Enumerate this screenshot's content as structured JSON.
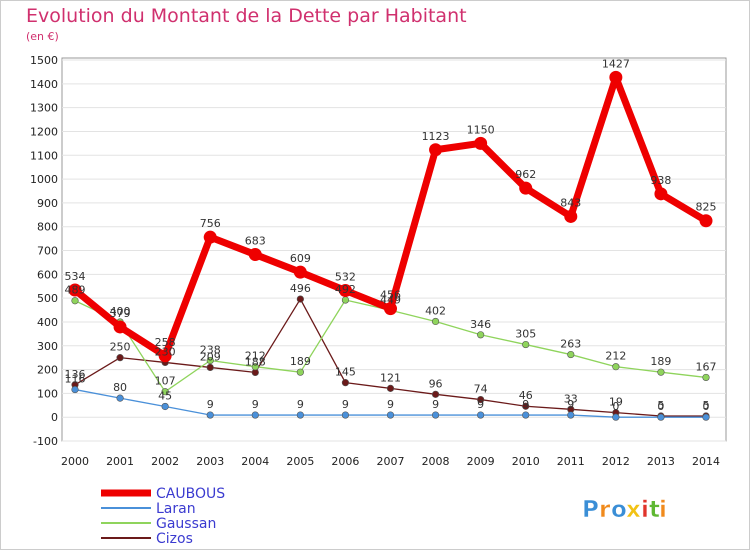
{
  "chart_data": {
    "type": "line",
    "title": "Evolution du Montant de la Dette par Habitant",
    "subtitle": "(en €)",
    "x": [
      "2000",
      "2001",
      "2002",
      "2003",
      "2004",
      "2005",
      "2006",
      "2007",
      "2008",
      "2009",
      "2010",
      "2011",
      "2012",
      "2013",
      "2014"
    ],
    "ylim": [
      -100,
      1500
    ],
    "yticks": [
      "-100",
      "0",
      "100",
      "200",
      "300",
      "400",
      "500",
      "600",
      "700",
      "800",
      "900",
      "1000",
      "1100",
      "1200",
      "1300",
      "1400",
      "1500"
    ],
    "grid": true,
    "legend_position": "bottom-left",
    "series": [
      {
        "name": "CAUBOUS",
        "color": "#ee0000",
        "values": [
          534,
          379,
          258,
          756,
          683,
          609,
          532,
          456,
          1123,
          1150,
          962,
          843,
          1427,
          938,
          825
        ],
        "labels": [
          "534",
          "379",
          "258",
          "756",
          "683",
          "609",
          "532",
          "456",
          "1123",
          "1150",
          "962",
          "843",
          "1427",
          "938",
          "825"
        ]
      },
      {
        "name": "Laran",
        "color": "#4a90d9",
        "values": [
          116,
          80,
          45,
          9,
          9,
          9,
          9,
          9,
          9,
          9,
          9,
          9,
          0,
          0,
          0
        ],
        "labels": [
          "116",
          "80",
          "45",
          "9",
          "9",
          "9",
          "9",
          "9",
          "9",
          "9",
          "9",
          "9",
          "0",
          "0",
          "0"
        ]
      },
      {
        "name": "Gaussan",
        "color": "#8fd45c",
        "values": [
          489,
          400,
          107,
          238,
          212,
          189,
          492,
          449,
          402,
          346,
          305,
          263,
          212,
          189,
          167
        ],
        "labels": [
          "489",
          "400",
          "107",
          "238",
          "212",
          "189",
          "492",
          "449",
          "402",
          "346",
          "305",
          "263",
          "212",
          "189",
          "167"
        ]
      },
      {
        "name": "Cizos",
        "color": "#6b1a1a",
        "values": [
          136,
          250,
          230,
          209,
          188,
          496,
          145,
          121,
          96,
          74,
          46,
          33,
          19,
          5,
          5
        ],
        "labels": [
          "136",
          "250",
          "230",
          "209",
          "188",
          "496",
          "145",
          "121",
          "96",
          "74",
          "46",
          "33",
          "19",
          "5",
          "5"
        ]
      }
    ]
  },
  "brand": {
    "letters": [
      "P",
      "r",
      "o",
      "x",
      "i",
      "t",
      "i"
    ],
    "colors": [
      "#3a8ed6",
      "#f08a1c",
      "#3a8ed6",
      "#f2c214",
      "#e0332b",
      "#5fb832",
      "#f08a1c"
    ]
  }
}
